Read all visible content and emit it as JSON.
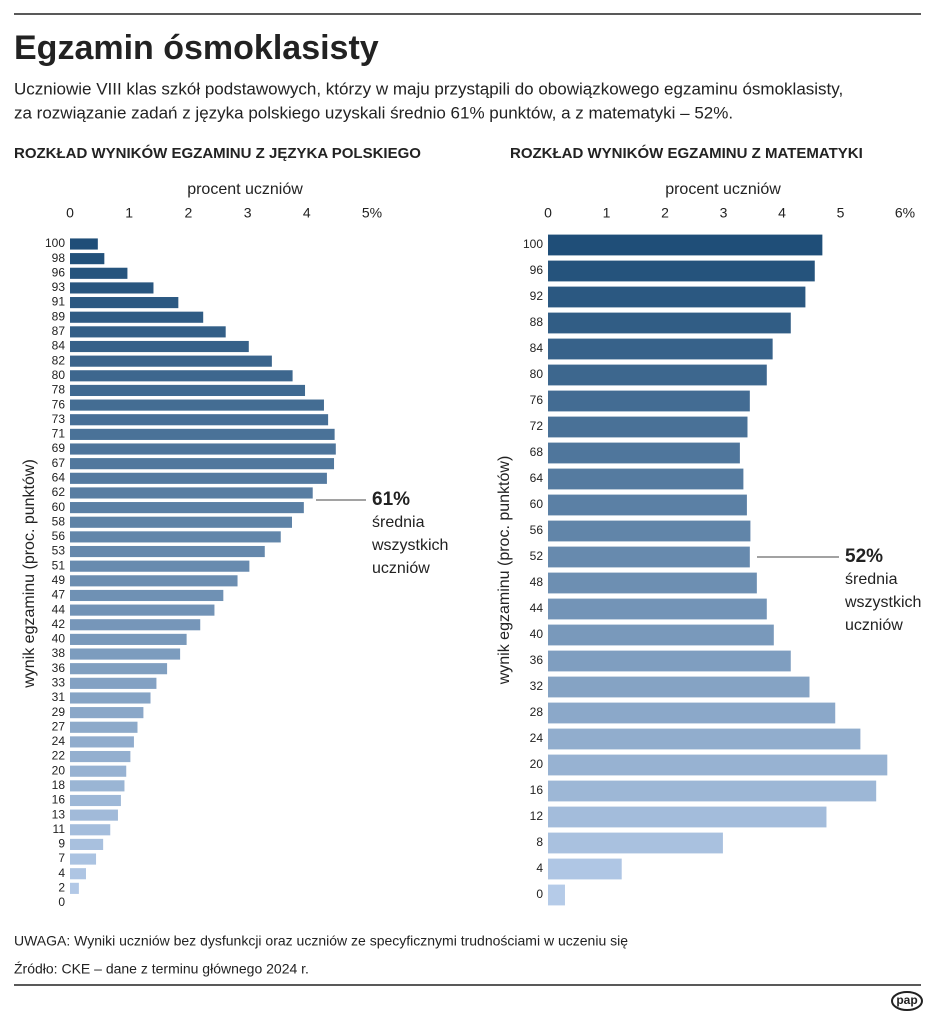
{
  "header": {
    "title": "Egzamin ósmoklasisty",
    "subtitle": [
      "Uczniowie VIII klas szkół podstawowych, którzy w maju przystąpili do obowiązkowego egzaminu ósmoklasisty,",
      "za rozwiązanie zadań z języka polskiego uzyskali średnio 61% punktów, a z matematyki – 52%."
    ]
  },
  "chart_data": [
    {
      "type": "bar",
      "orientation": "horizontal",
      "title": "ROZKŁAD WYNIKÓW EGZAMINU Z JĘZYKA POLSKIEGO",
      "xlabel": "procent uczniów",
      "ylabel": "wynik egzaminu (proc. punktów)",
      "categories": [
        "100",
        "98",
        "96",
        "93",
        "91",
        "89",
        "87",
        "84",
        "82",
        "80",
        "78",
        "76",
        "73",
        "71",
        "69",
        "67",
        "64",
        "62",
        "60",
        "58",
        "56",
        "53",
        "51",
        "49",
        "47",
        "44",
        "42",
        "40",
        "38",
        "36",
        "33",
        "31",
        "29",
        "27",
        "24",
        "22",
        "20",
        "18",
        "16",
        "13",
        "11",
        "9",
        "7",
        "4",
        "2",
        "0"
      ],
      "values": [
        0.47,
        0.58,
        0.97,
        1.41,
        1.83,
        2.25,
        2.63,
        3.02,
        3.41,
        3.76,
        3.97,
        4.29,
        4.36,
        4.47,
        4.49,
        4.46,
        4.34,
        4.1,
        3.95,
        3.75,
        3.56,
        3.29,
        3.03,
        2.83,
        2.59,
        2.44,
        2.2,
        1.97,
        1.86,
        1.64,
        1.46,
        1.36,
        1.24,
        1.14,
        1.08,
        1.02,
        0.95,
        0.92,
        0.86,
        0.81,
        0.68,
        0.56,
        0.44,
        0.27,
        0.15,
        0
      ],
      "xlim": [
        0,
        5
      ],
      "xticks": [
        0,
        1,
        2,
        3,
        4,
        {
          "value": 5,
          "label": "5%"
        }
      ],
      "color_range": [
        "#1f4e78",
        "#b5cbe8"
      ],
      "annotation": {
        "label": "61%",
        "text": [
          "średnia",
          "wszystkich",
          "uczniów"
        ]
      }
    },
    {
      "type": "bar",
      "orientation": "horizontal",
      "title": "ROZKŁAD WYNIKÓW EGZAMINU Z MATEMATYKI",
      "xlabel": "procent uczniów",
      "ylabel": "wynik egzaminu (proc. punktów)",
      "categories": [
        "100",
        "96",
        "92",
        "88",
        "84",
        "80",
        "76",
        "72",
        "68",
        "64",
        "60",
        "56",
        "52",
        "48",
        "44",
        "40",
        "36",
        "32",
        "28",
        "24",
        "20",
        "16",
        "12",
        "8",
        "4",
        "0"
      ],
      "values": [
        4.69,
        4.56,
        4.4,
        4.15,
        3.84,
        3.74,
        3.45,
        3.41,
        3.28,
        3.34,
        3.4,
        3.46,
        3.45,
        3.57,
        3.74,
        3.86,
        4.15,
        4.47,
        4.91,
        5.34,
        5.8,
        5.61,
        4.76,
        2.99,
        1.26,
        0.29
      ],
      "xlim": [
        0,
        6
      ],
      "xticks": [
        0,
        1,
        2,
        3,
        4,
        5,
        {
          "value": 6,
          "label": "6%"
        }
      ],
      "color_range": [
        "#1f4e78",
        "#b5cbe8"
      ],
      "annotation": {
        "label": "52%",
        "text": [
          "średnia",
          "wszystkich",
          "uczniów"
        ]
      }
    }
  ],
  "footer": {
    "note": "UWAGA: Wyniki uczniów bez dysfunkcji oraz uczniów ze specyficznymi trudnościami w uczeniu się",
    "source": "Źródło: CKE – dane z terminu głównego 2024 r.",
    "logo": "pap"
  }
}
